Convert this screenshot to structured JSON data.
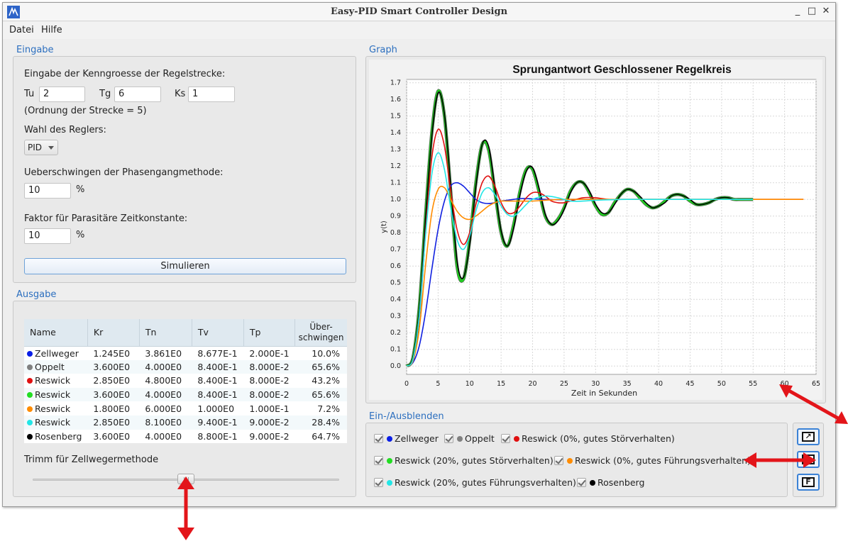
{
  "window": {
    "title": "Easy-PID Smart Controller Design",
    "minimize": "_",
    "maximize": "□",
    "close": "✕"
  },
  "menu": {
    "items": [
      "Datei",
      "Hilfe"
    ]
  },
  "eingabe": {
    "group_label": "Eingabe",
    "heading": "Eingabe der Kenngroesse der Regelstrecke:",
    "tu_label": "Tu",
    "tu_value": "2",
    "tg_label": "Tg",
    "tg_value": "6",
    "ks_label": "Ks",
    "ks_value": "1",
    "order_text": "(Ordnung der Strecke = 5)",
    "regler_label": "Wahl des Reglers:",
    "regler_value": "PID",
    "ueber_label": "Ueberschwingen der Phasengangmethode:",
    "ueber_value": "10",
    "ueber_unit": "%",
    "faktor_label": "Faktor für Parasitäre Zeitkonstante:",
    "faktor_value": "10",
    "faktor_unit": "%",
    "simulate_label": "Simulieren"
  },
  "ausgabe": {
    "group_label": "Ausgabe",
    "columns": [
      "Name",
      "Kr",
      "Tn",
      "Tv",
      "Tp",
      "Über-\nschwingen"
    ],
    "rows": [
      {
        "name": "Zellweger",
        "color": "#0a1ee6",
        "kr": "1.245E0",
        "tn": "3.861E0",
        "tv": "8.677E-1",
        "tp": "2.000E-1",
        "ueb": "10.0%"
      },
      {
        "name": "Oppelt",
        "color": "#808080",
        "kr": "3.600E0",
        "tn": "4.000E0",
        "tv": "8.400E-1",
        "tp": "8.000E-2",
        "ueb": "65.6%"
      },
      {
        "name": "Reswick",
        "color": "#e01010",
        "kr": "2.850E0",
        "tn": "4.800E0",
        "tv": "8.400E-1",
        "tp": "8.000E-2",
        "ueb": "43.2%"
      },
      {
        "name": "Reswick",
        "color": "#22dd22",
        "kr": "3.600E0",
        "tn": "4.000E0",
        "tv": "8.400E-1",
        "tp": "8.000E-2",
        "ueb": "65.6%"
      },
      {
        "name": "Reswick",
        "color": "#ff8c00",
        "kr": "1.800E0",
        "tn": "6.000E0",
        "tv": "1.000E0",
        "tp": "1.000E-1",
        "ueb": "7.2%"
      },
      {
        "name": "Reswick",
        "color": "#22e6e6",
        "kr": "2.850E0",
        "tn": "8.100E0",
        "tv": "9.400E-1",
        "tp": "9.000E-2",
        "ueb": "28.4%"
      },
      {
        "name": "Rosenberg",
        "color": "#000000",
        "kr": "3.600E0",
        "tn": "4.000E0",
        "tv": "8.800E-1",
        "tp": "9.000E-2",
        "ueb": "64.7%"
      }
    ],
    "trimm_label": "Trimm für Zellwegermethode",
    "trimm_level": 0.5
  },
  "graph": {
    "group_label": "Graph"
  },
  "chart_data": {
    "type": "line",
    "title": "Sprungantwort Geschlossener Regelkreis",
    "xlabel": "Zeit in Sekunden",
    "ylabel": "y(t)",
    "xlim": [
      0,
      65
    ],
    "ylim": [
      -0.05,
      1.72
    ],
    "x_ticks": [
      0,
      5,
      10,
      15,
      20,
      25,
      30,
      35,
      40,
      45,
      50,
      55,
      60,
      65
    ],
    "y_ticks": [
      0.0,
      0.1,
      0.2,
      0.3,
      0.4,
      0.5,
      0.6,
      0.7,
      0.8,
      0.9,
      1.0,
      1.1,
      1.2,
      1.3,
      1.4,
      1.5,
      1.6,
      1.7
    ],
    "grid": true,
    "series": [
      {
        "name": "Zellweger",
        "color": "#1020e0",
        "x": [
          0,
          1,
          2,
          3,
          4,
          5,
          6,
          7,
          8,
          9,
          10,
          11,
          12,
          13,
          14,
          15,
          16,
          17,
          18,
          19,
          20,
          22,
          24,
          26,
          28,
          30
        ],
        "y": [
          0,
          0.02,
          0.12,
          0.32,
          0.58,
          0.82,
          0.99,
          1.08,
          1.1,
          1.08,
          1.04,
          1.0,
          0.98,
          0.975,
          0.98,
          0.99,
          0.995,
          1.0,
          1.005,
          1.005,
          1.003,
          1.0,
          0.998,
          1.0,
          1.0,
          1.0
        ]
      },
      {
        "name": "Oppelt",
        "color": "#555555",
        "x": [
          0,
          1,
          2,
          3,
          4,
          5,
          6,
          7,
          8,
          9,
          10,
          11,
          12,
          13,
          14,
          15,
          16,
          17,
          18,
          19,
          20,
          21,
          22,
          23,
          24,
          25,
          26,
          27,
          28,
          29,
          30,
          31,
          32,
          33,
          34,
          35,
          36,
          37,
          38,
          39,
          40,
          41,
          42,
          43,
          44,
          45,
          46,
          47,
          48,
          49,
          50,
          51,
          52,
          53,
          54,
          55
        ],
        "y": [
          0,
          0.05,
          0.35,
          0.9,
          1.4,
          1.65,
          1.5,
          1.05,
          0.6,
          0.52,
          0.75,
          1.1,
          1.33,
          1.3,
          1.05,
          0.8,
          0.72,
          0.85,
          1.05,
          1.18,
          1.18,
          1.05,
          0.9,
          0.85,
          0.88,
          0.95,
          1.05,
          1.1,
          1.1,
          1.04,
          0.96,
          0.91,
          0.92,
          0.98,
          1.03,
          1.06,
          1.05,
          1.01,
          0.97,
          0.95,
          0.96,
          0.99,
          1.02,
          1.03,
          1.02,
          0.99,
          0.97,
          0.97,
          0.98,
          1.0,
          1.01,
          1.01,
          1.0,
          1.0,
          1.0,
          1.0
        ]
      },
      {
        "name": "Reswick (0%, gutes Störverhalten)",
        "color": "#e01010",
        "x": [
          0,
          1,
          2,
          3,
          4,
          5,
          6,
          7,
          8,
          9,
          10,
          11,
          12,
          13,
          14,
          15,
          16,
          17,
          18,
          19,
          20,
          21,
          22,
          23,
          24,
          25,
          26,
          28,
          30,
          32,
          34,
          36,
          40,
          45,
          50,
          55,
          60,
          63
        ],
        "y": [
          0,
          0.04,
          0.3,
          0.8,
          1.25,
          1.42,
          1.32,
          1.05,
          0.82,
          0.73,
          0.8,
          0.97,
          1.1,
          1.14,
          1.08,
          0.98,
          0.92,
          0.92,
          0.96,
          1.01,
          1.04,
          1.04,
          1.02,
          0.99,
          0.98,
          0.98,
          0.99,
          1.01,
          1.01,
          1.0,
          1.0,
          1.0,
          1.0,
          1.0,
          1.0,
          1.0,
          1.0,
          1.0
        ]
      },
      {
        "name": "Reswick (20%, gutes Störverhalten)",
        "color": "#22cc22",
        "x": [
          0,
          1,
          2,
          3,
          4,
          5,
          6,
          7,
          8,
          9,
          10,
          11,
          12,
          13,
          14,
          15,
          16,
          17,
          18,
          19,
          20,
          21,
          22,
          23,
          24,
          25,
          26,
          27,
          28,
          29,
          30,
          31,
          32,
          33,
          34,
          35,
          36,
          37,
          38,
          39,
          40,
          41,
          42,
          43,
          44,
          45,
          46,
          47,
          48,
          49,
          50,
          51,
          52,
          53,
          54,
          55
        ],
        "y": [
          0,
          0.05,
          0.35,
          0.9,
          1.4,
          1.65,
          1.5,
          1.05,
          0.6,
          0.52,
          0.75,
          1.1,
          1.33,
          1.3,
          1.05,
          0.8,
          0.72,
          0.85,
          1.05,
          1.18,
          1.18,
          1.05,
          0.9,
          0.85,
          0.88,
          0.95,
          1.05,
          1.1,
          1.1,
          1.04,
          0.96,
          0.91,
          0.92,
          0.98,
          1.03,
          1.06,
          1.05,
          1.01,
          0.97,
          0.95,
          0.96,
          0.99,
          1.02,
          1.03,
          1.02,
          0.99,
          0.97,
          0.97,
          0.98,
          1.0,
          1.01,
          1.01,
          1.0,
          1.0,
          1.0,
          1.0
        ]
      },
      {
        "name": "Reswick (0%, gutes Führungsverhalten)",
        "color": "#ff8c00",
        "x": [
          0,
          1,
          2,
          3,
          4,
          5,
          6,
          7,
          8,
          9,
          10,
          11,
          12,
          13,
          14,
          15,
          16,
          17,
          18,
          20,
          22,
          25,
          30,
          35,
          40,
          45,
          50,
          55,
          60,
          63
        ],
        "y": [
          0,
          0.03,
          0.22,
          0.6,
          0.92,
          1.06,
          1.07,
          1.0,
          0.93,
          0.89,
          0.88,
          0.9,
          0.93,
          0.96,
          0.98,
          0.99,
          0.99,
          0.99,
          0.99,
          0.99,
          0.995,
          1.0,
          1.0,
          1.0,
          1.0,
          1.0,
          1.0,
          1.0,
          1.0,
          1.0
        ]
      },
      {
        "name": "Reswick (20%, gutes Führungsverhalten)",
        "color": "#22e6e6",
        "x": [
          0,
          1,
          2,
          3,
          4,
          5,
          6,
          7,
          8,
          9,
          10,
          11,
          12,
          13,
          14,
          15,
          16,
          17,
          18,
          19,
          20,
          22,
          24,
          26,
          28,
          30,
          35,
          40,
          45,
          50,
          55
        ],
        "y": [
          0,
          0.04,
          0.3,
          0.78,
          1.15,
          1.28,
          1.18,
          0.95,
          0.76,
          0.7,
          0.78,
          0.93,
          1.04,
          1.07,
          1.03,
          0.96,
          0.91,
          0.9,
          0.93,
          0.97,
          1.0,
          1.02,
          1.01,
          0.99,
          0.99,
          0.995,
          1.0,
          1.0,
          1.0,
          1.0,
          1.0
        ]
      },
      {
        "name": "Rosenberg",
        "color": "#000000",
        "x": [
          0,
          1,
          2,
          3,
          4,
          5,
          6,
          7,
          8,
          9,
          10,
          11,
          12,
          13,
          14,
          15,
          16,
          17,
          18,
          19,
          20,
          21,
          22,
          23,
          24,
          25,
          26,
          27,
          28,
          29,
          30,
          31,
          32,
          33,
          34,
          35,
          36,
          37,
          38,
          39,
          40,
          41,
          42,
          43,
          44,
          45,
          46,
          47,
          48,
          49,
          50,
          51,
          52,
          53,
          54,
          55
        ],
        "y": [
          0,
          0.05,
          0.34,
          0.88,
          1.38,
          1.64,
          1.51,
          1.08,
          0.63,
          0.53,
          0.73,
          1.08,
          1.33,
          1.32,
          1.07,
          0.81,
          0.72,
          0.83,
          1.03,
          1.17,
          1.19,
          1.07,
          0.91,
          0.85,
          0.87,
          0.94,
          1.04,
          1.1,
          1.1,
          1.05,
          0.97,
          0.92,
          0.92,
          0.97,
          1.03,
          1.06,
          1.05,
          1.02,
          0.98,
          0.95,
          0.96,
          0.98,
          1.02,
          1.03,
          1.02,
          1.0,
          0.97,
          0.97,
          0.98,
          1.0,
          1.01,
          1.01,
          1.0,
          1.0,
          1.0,
          1.0
        ]
      }
    ]
  },
  "toggles": {
    "group_label": "Ein-/Ausblenden",
    "items": [
      {
        "label": "Zellweger",
        "color": "#0a1ee6"
      },
      {
        "label": "Oppelt",
        "color": "#808080"
      },
      {
        "label": "Reswick (0%, gutes Störverhalten)",
        "color": "#e01010"
      },
      {
        "label": "Reswick (20%, gutes Störverhalten)",
        "color": "#22dd22"
      },
      {
        "label": "Reswick (0%, gutes Führungsverhalten)",
        "color": "#ff8c00"
      },
      {
        "label": "Reswick (20%, gutes Führungsverhalten)",
        "color": "#22e6e6"
      },
      {
        "label": "Rosenberg",
        "color": "#000000"
      }
    ],
    "button_labels": [
      "↗",
      "",
      "F"
    ]
  },
  "annotations": {
    "arrow_color": "#e3151a"
  }
}
